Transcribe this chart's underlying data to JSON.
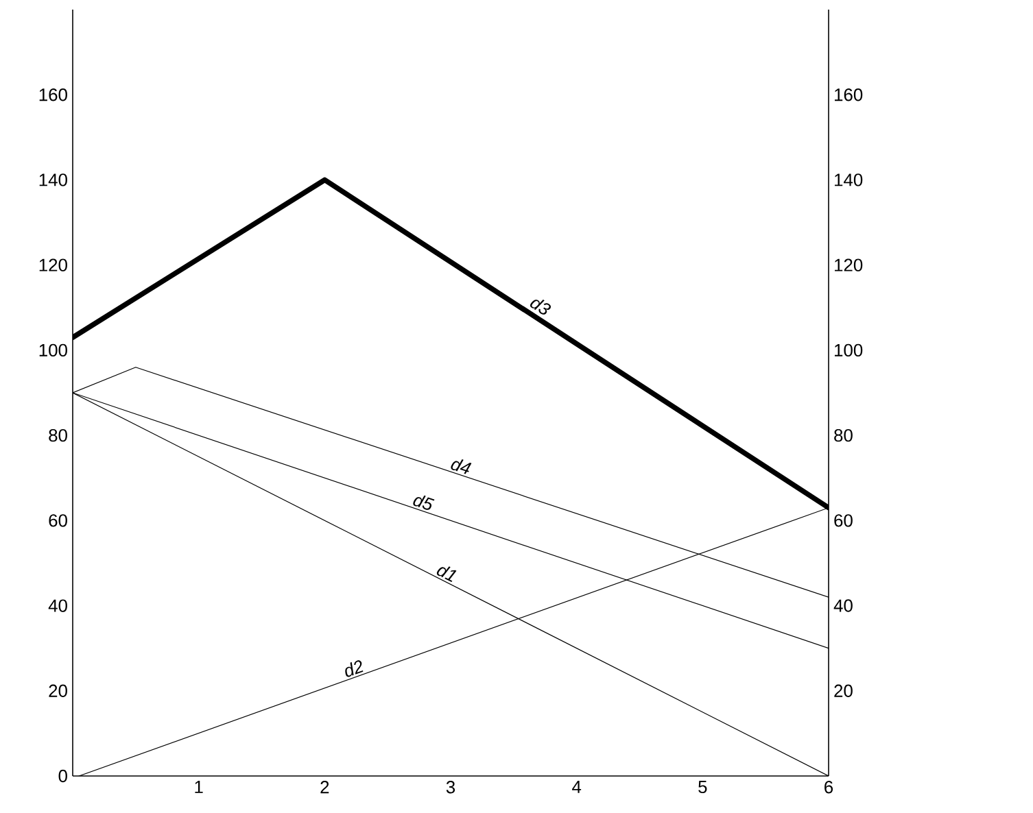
{
  "chart_data": {
    "type": "line",
    "xlim": [
      0,
      6
    ],
    "xticks": [
      1,
      2,
      3,
      4,
      5,
      6
    ],
    "ylim": [
      0,
      180
    ],
    "yticks": [
      0,
      20,
      40,
      60,
      80,
      100,
      120,
      140,
      160
    ],
    "y2lim": [
      0,
      180
    ],
    "y2ticks": [
      20,
      40,
      60,
      80,
      100,
      120,
      140,
      160
    ],
    "marker": "none",
    "line_style": "solid",
    "series": [
      {
        "name": "d1",
        "color": "#000000",
        "x": [
          0,
          6
        ],
        "values": [
          90,
          0
        ]
      },
      {
        "name": "d2",
        "color": "#000000",
        "x": [
          0.05,
          6
        ],
        "values": [
          0,
          63
        ]
      },
      {
        "name": "d3",
        "color": "#000000",
        "x": [
          0,
          2,
          6
        ],
        "values": [
          103,
          140,
          63
        ]
      },
      {
        "name": "d4",
        "color": "#000000",
        "x": [
          0,
          0.5,
          6
        ],
        "values": [
          90,
          96,
          42
        ]
      },
      {
        "name": "d5",
        "color": "#000000",
        "x": [
          0,
          6
        ],
        "values": [
          90,
          30
        ]
      }
    ]
  }
}
